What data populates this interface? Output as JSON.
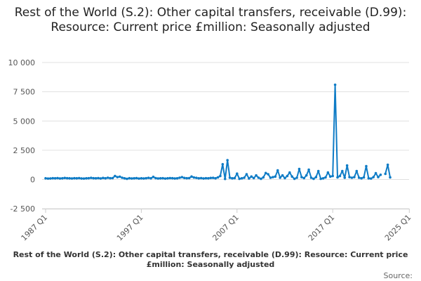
{
  "chart_data": {
    "type": "line",
    "title": "Rest of the World (S.2): Other capital transfers, receivable (D.99): Resource: Current price £million: Seasonally adjusted",
    "xlabel": "",
    "ylabel": "",
    "ylim": [
      -2500,
      10000
    ],
    "yticks": [
      -2500,
      0,
      2500,
      5000,
      7500,
      10000
    ],
    "ytick_labels": [
      "-2 500",
      "0",
      "2 500",
      "5 000",
      "7 500",
      "10 000"
    ],
    "xticks": [
      "1987 Q1",
      "1997 Q1",
      "2007 Q1",
      "2017 Q1",
      "2025 Q1"
    ],
    "grid": true,
    "legend": "bottom",
    "source_label": "Source:",
    "color": "#0f7cc6",
    "x": [
      "1987 Q1",
      "1987 Q2",
      "1987 Q3",
      "1987 Q4",
      "1988 Q1",
      "1988 Q2",
      "1988 Q3",
      "1988 Q4",
      "1989 Q1",
      "1989 Q2",
      "1989 Q3",
      "1989 Q4",
      "1990 Q1",
      "1990 Q2",
      "1990 Q3",
      "1990 Q4",
      "1991 Q1",
      "1991 Q2",
      "1991 Q3",
      "1991 Q4",
      "1992 Q1",
      "1992 Q2",
      "1992 Q3",
      "1992 Q4",
      "1993 Q1",
      "1993 Q2",
      "1993 Q3",
      "1993 Q4",
      "1994 Q1",
      "1994 Q2",
      "1994 Q3",
      "1994 Q4",
      "1995 Q1",
      "1995 Q2",
      "1995 Q3",
      "1995 Q4",
      "1996 Q1",
      "1996 Q2",
      "1996 Q3",
      "1996 Q4",
      "1997 Q1",
      "1997 Q2",
      "1997 Q3",
      "1997 Q4",
      "1998 Q1",
      "1998 Q2",
      "1998 Q3",
      "1998 Q4",
      "1999 Q1",
      "1999 Q2",
      "1999 Q3",
      "1999 Q4",
      "2000 Q1",
      "2000 Q2",
      "2000 Q3",
      "2000 Q4",
      "2001 Q1",
      "2001 Q2",
      "2001 Q3",
      "2001 Q4",
      "2002 Q1",
      "2002 Q2",
      "2002 Q3",
      "2002 Q4",
      "2003 Q1",
      "2003 Q2",
      "2003 Q3",
      "2003 Q4",
      "2004 Q1",
      "2004 Q2",
      "2004 Q3",
      "2004 Q4",
      "2005 Q1",
      "2005 Q2",
      "2005 Q3",
      "2005 Q4",
      "2006 Q1",
      "2006 Q2",
      "2006 Q3",
      "2006 Q4",
      "2007 Q1",
      "2007 Q2",
      "2007 Q3",
      "2007 Q4",
      "2008 Q1",
      "2008 Q2",
      "2008 Q3",
      "2008 Q4",
      "2009 Q1",
      "2009 Q2",
      "2009 Q3",
      "2009 Q4",
      "2010 Q1",
      "2010 Q2",
      "2010 Q3",
      "2010 Q4",
      "2011 Q1",
      "2011 Q2",
      "2011 Q3",
      "2011 Q4",
      "2012 Q1",
      "2012 Q2",
      "2012 Q3",
      "2012 Q4",
      "2013 Q1",
      "2013 Q2",
      "2013 Q3",
      "2013 Q4",
      "2014 Q1",
      "2014 Q2",
      "2014 Q3",
      "2014 Q4",
      "2015 Q1",
      "2015 Q2",
      "2015 Q3",
      "2015 Q4",
      "2016 Q1",
      "2016 Q2",
      "2016 Q3",
      "2016 Q4",
      "2017 Q1",
      "2017 Q2",
      "2017 Q3",
      "2017 Q4",
      "2018 Q1",
      "2018 Q2",
      "2018 Q3",
      "2018 Q4",
      "2019 Q1",
      "2019 Q2",
      "2019 Q3",
      "2019 Q4",
      "2020 Q1",
      "2020 Q2",
      "2020 Q3",
      "2020 Q4",
      "2021 Q1",
      "2021 Q2",
      "2021 Q3",
      "2021 Q4",
      "2022 Q1",
      "2022 Q2",
      "2022 Q3",
      "2022 Q4",
      "2023 Q1"
    ],
    "series": [
      {
        "name": "Rest of the World (S.2): Other capital transfers, receivable (D.99): Resource: Current price £million: Seasonally adjusted",
        "values": [
          100,
          80,
          90,
          110,
          100,
          120,
          90,
          100,
          130,
          110,
          100,
          90,
          110,
          100,
          120,
          90,
          80,
          100,
          110,
          140,
          110,
          100,
          120,
          90,
          130,
          100,
          150,
          110,
          120,
          300,
          200,
          240,
          150,
          100,
          60,
          110,
          90,
          100,
          120,
          80,
          100,
          90,
          110,
          140,
          100,
          220,
          120,
          90,
          100,
          110,
          80,
          100,
          120,
          110,
          90,
          100,
          150,
          200,
          130,
          110,
          120,
          250,
          170,
          140,
          100,
          120,
          90,
          110,
          100,
          130,
          140,
          100,
          180,
          300,
          1300,
          50,
          1650,
          150,
          100,
          120,
          500,
          60,
          100,
          150,
          450,
          90,
          250,
          120,
          350,
          150,
          60,
          180,
          550,
          450,
          150,
          200,
          250,
          780,
          150,
          350,
          120,
          300,
          600,
          250,
          60,
          150,
          900,
          200,
          120,
          350,
          840,
          150,
          60,
          200,
          720,
          60,
          100,
          180,
          600,
          250,
          300,
          8100,
          180,
          300,
          720,
          150,
          1200,
          200,
          150,
          200,
          720,
          150,
          100,
          180,
          1140,
          100,
          80,
          200,
          540,
          200,
          400,
          null,
          480,
          1260,
          180
        ]
      }
    ]
  }
}
